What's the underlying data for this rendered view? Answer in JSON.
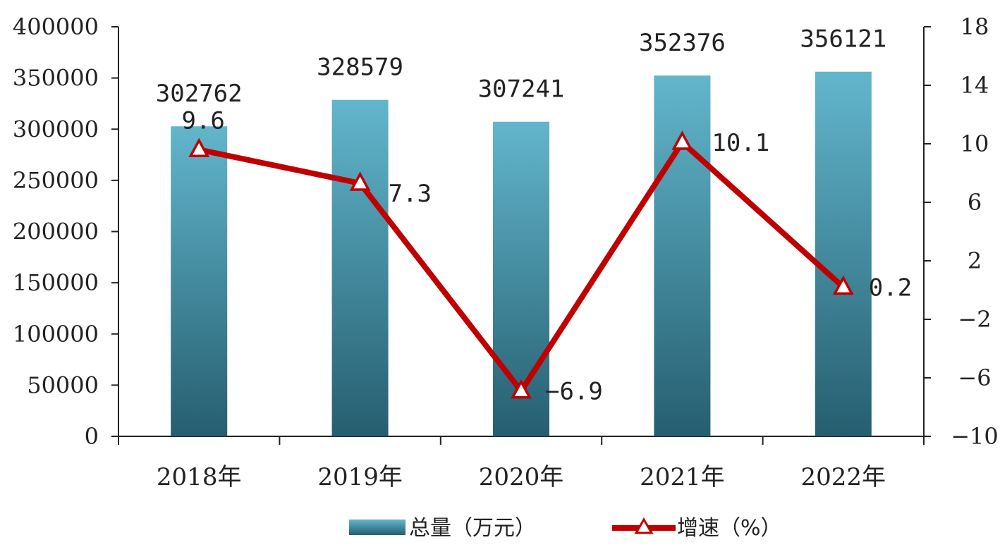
{
  "chart_data": {
    "type": "bar",
    "categories": [
      "2018年",
      "2019年",
      "2020年",
      "2021年",
      "2022年"
    ],
    "series": [
      {
        "name": "总量（万元）",
        "type": "bar",
        "axis": "left",
        "values": [
          302762,
          328579,
          307241,
          352376,
          356121
        ],
        "labels": [
          "302762",
          "328579",
          "307241",
          "352376",
          "356121"
        ]
      },
      {
        "name": "增速（%）",
        "type": "line",
        "axis": "right",
        "values": [
          9.6,
          7.3,
          -6.9,
          10.1,
          0.2
        ],
        "labels": [
          "9.6",
          "7.3",
          "-6.9",
          "10.1",
          "0.2"
        ]
      }
    ],
    "y_left": {
      "min": 0,
      "max": 400000,
      "ticks": [
        "0",
        "50000",
        "100000",
        "150000",
        "200000",
        "250000",
        "300000",
        "350000",
        "400000"
      ]
    },
    "y_right": {
      "min": -10,
      "max": 18,
      "ticks": [
        "-10",
        "-6",
        "-2",
        "2",
        "6",
        "10",
        "14",
        "18"
      ]
    },
    "legend_position": "bottom",
    "grid": false,
    "colors": {
      "bar_top": "#62b6cc",
      "bar_bottom": "#265e70",
      "line": "#c00000",
      "marker_fill": "#ffffff"
    }
  },
  "legend": {
    "bar_label": "总量（万元）",
    "line_label": "增速（%）"
  }
}
